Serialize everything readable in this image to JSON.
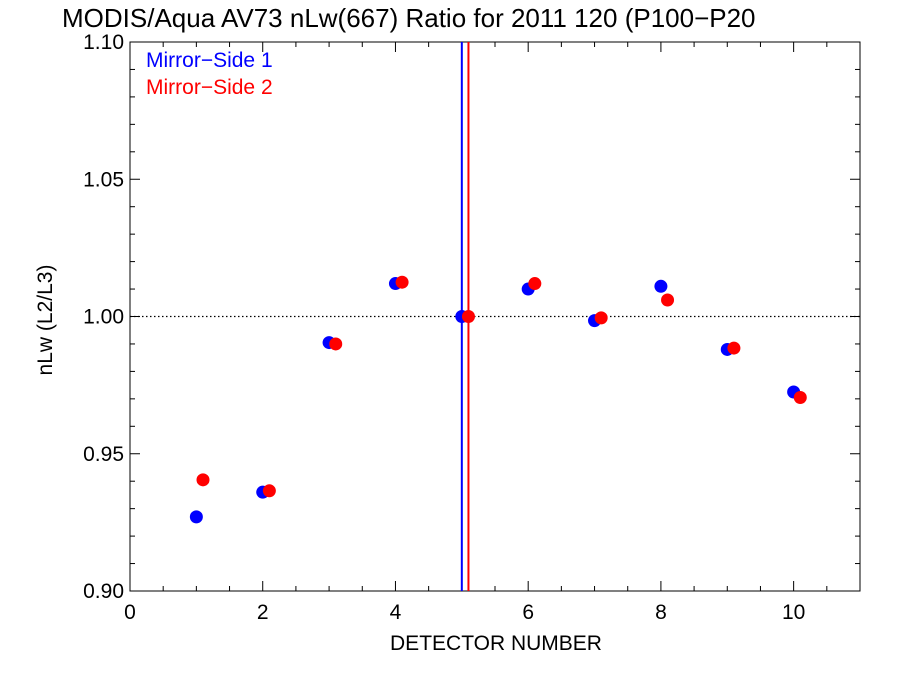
{
  "chart_data": {
    "type": "scatter",
    "title": "MODIS/Aqua AV73 nLw(667) Ratio for 2011 120 (P100−P20",
    "xlabel": "DETECTOR NUMBER",
    "ylabel": "nLw (L2/L3)",
    "xlim": [
      0,
      11
    ],
    "ylim": [
      0.9,
      1.1
    ],
    "xticks": [
      0,
      2,
      4,
      6,
      8,
      10
    ],
    "xtick_labels": [
      "0",
      "2",
      "4",
      "6",
      "8",
      "10"
    ],
    "yticks": [
      0.9,
      0.95,
      1.0,
      1.05,
      1.1
    ],
    "ytick_labels": [
      "0.90",
      "0.95",
      "1.00",
      "1.05",
      "1.10"
    ],
    "reference_line_y": 1.0,
    "legend_position": "top-left",
    "series": [
      {
        "name": "Mirror−Side 1",
        "color": "#0000ff",
        "x": [
          1,
          2,
          3,
          4,
          5,
          6,
          7,
          8,
          9,
          10
        ],
        "y": [
          0.927,
          0.936,
          0.9905,
          1.012,
          1.0,
          1.01,
          0.9985,
          1.011,
          0.988,
          0.9725
        ],
        "vline_x": 5.0
      },
      {
        "name": "Mirror−Side 2",
        "color": "#ff0000",
        "x": [
          1.1,
          2.1,
          3.1,
          4.1,
          5.1,
          6.1,
          7.1,
          8.1,
          9.1,
          10.1
        ],
        "y": [
          0.9405,
          0.9365,
          0.99,
          1.0125,
          1.0,
          1.012,
          0.9995,
          1.006,
          0.9885,
          0.9705
        ],
        "vline_x": 5.1
      }
    ]
  }
}
